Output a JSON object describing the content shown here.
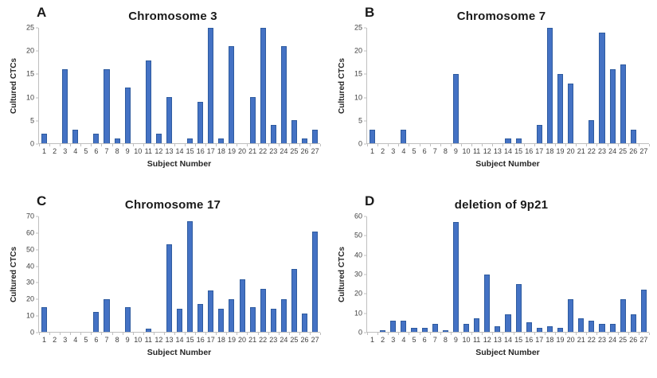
{
  "figure": {
    "background": "#ffffff"
  },
  "style": {
    "bar_fill": "#4472c4",
    "bar_border": "#2e5b9f",
    "axis_color": "#bfbfbf",
    "text_color": "#1a1a1a"
  },
  "chart_data": [
    {
      "panel_label": "A",
      "type": "bar",
      "title": "Chromosome 3",
      "xlabel": "Subject Number",
      "ylabel": "Cultured CTCs",
      "ylim": [
        0,
        25
      ],
      "yticks": [
        0,
        5,
        10,
        15,
        20,
        25
      ],
      "grid": false,
      "legend": false,
      "categories": [
        "1",
        "2",
        "3",
        "4",
        "5",
        "6",
        "7",
        "8",
        "9",
        "10",
        "11",
        "12",
        "13",
        "14",
        "15",
        "16",
        "17",
        "18",
        "19",
        "20",
        "21",
        "22",
        "23",
        "24",
        "25",
        "26",
        "27"
      ],
      "values": [
        2,
        0,
        16,
        3,
        0,
        2,
        16,
        1,
        12,
        0,
        18,
        2,
        10,
        0,
        1,
        9,
        25,
        1,
        21,
        0,
        10,
        25,
        4,
        21,
        5,
        1,
        3
      ]
    },
    {
      "panel_label": "B",
      "type": "bar",
      "title": "Chromosome 7",
      "xlabel": "Subject Number",
      "ylabel": "Cultured CTCs",
      "ylim": [
        0,
        25
      ],
      "yticks": [
        0,
        5,
        10,
        15,
        20,
        25
      ],
      "grid": false,
      "legend": false,
      "categories": [
        "1",
        "2",
        "3",
        "4",
        "5",
        "6",
        "7",
        "8",
        "9",
        "10",
        "11",
        "12",
        "13",
        "14",
        "15",
        "16",
        "17",
        "18",
        "19",
        "20",
        "21",
        "22",
        "23",
        "24",
        "25",
        "26",
        "27"
      ],
      "values": [
        3,
        0,
        0,
        3,
        0,
        0,
        0,
        0,
        15,
        0,
        0,
        0,
        0,
        1,
        1,
        0,
        4,
        25,
        15,
        13,
        0,
        5,
        24,
        16,
        17,
        3,
        0
      ]
    },
    {
      "panel_label": "C",
      "type": "bar",
      "title": "Chromosome 17",
      "xlabel": "Subject Number",
      "ylabel": "Cultured CTCs",
      "ylim": [
        0,
        70
      ],
      "yticks": [
        0,
        10,
        20,
        30,
        40,
        50,
        60,
        70
      ],
      "grid": false,
      "legend": false,
      "categories": [
        "1",
        "2",
        "3",
        "4",
        "5",
        "6",
        "7",
        "8",
        "9",
        "10",
        "11",
        "12",
        "13",
        "14",
        "15",
        "16",
        "17",
        "18",
        "19",
        "20",
        "21",
        "22",
        "23",
        "24",
        "25",
        "26",
        "27"
      ],
      "values": [
        15,
        0,
        0,
        0,
        0,
        12,
        20,
        0,
        15,
        0,
        2,
        0,
        53,
        14,
        67,
        17,
        25,
        14,
        20,
        32,
        15,
        26,
        14,
        20,
        38,
        11,
        61
      ]
    },
    {
      "panel_label": "D",
      "type": "bar",
      "title": "deletion of 9p21",
      "xlabel": "Subject Number",
      "ylabel": "Cultured CTCs",
      "ylim": [
        0,
        60
      ],
      "yticks": [
        0,
        10,
        20,
        30,
        40,
        50,
        60
      ],
      "grid": false,
      "legend": false,
      "categories": [
        "1",
        "2",
        "3",
        "4",
        "5",
        "6",
        "7",
        "8",
        "9",
        "10",
        "11",
        "12",
        "13",
        "14",
        "15",
        "16",
        "17",
        "18",
        "19",
        "20",
        "21",
        "22",
        "23",
        "24",
        "25",
        "26",
        "27"
      ],
      "values": [
        0,
        1,
        6,
        6,
        2,
        2,
        4,
        1,
        57,
        4,
        7,
        30,
        3,
        9,
        25,
        5,
        2,
        3,
        2,
        17,
        7,
        6,
        4,
        4,
        17,
        9,
        22
      ]
    }
  ]
}
